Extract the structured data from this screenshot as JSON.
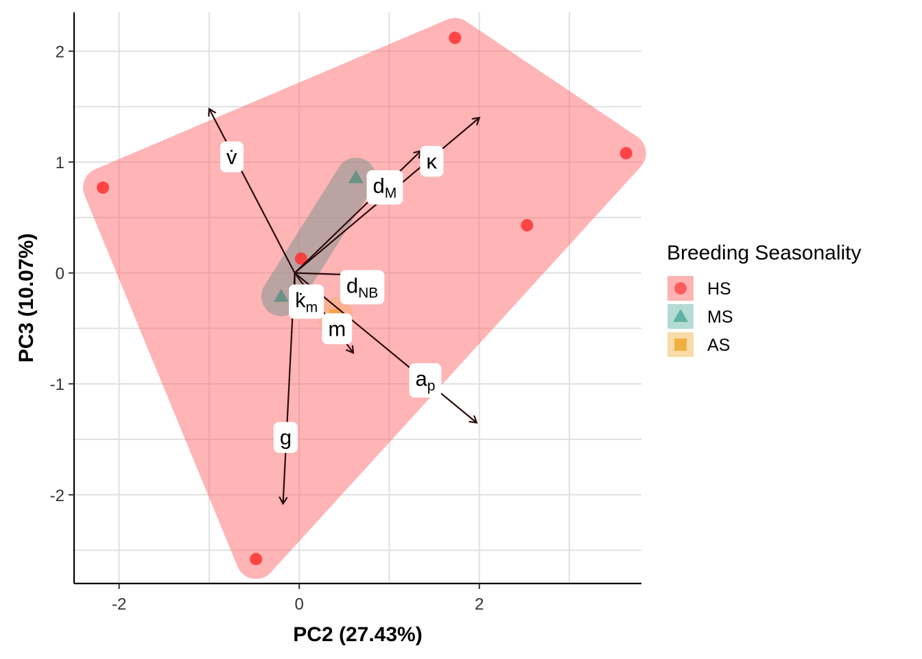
{
  "chart_data": {
    "type": "scatter",
    "xlabel": "PC2 (27.43%)",
    "ylabel": "PC3 (10.07%)",
    "xlim": [
      -2.5,
      3.8
    ],
    "ylim": [
      -2.8,
      2.35
    ],
    "x_ticks": [
      -2,
      0,
      2
    ],
    "y_ticks": [
      -2,
      -1,
      0,
      1,
      2
    ],
    "x_tick_labels": [
      "-2",
      "0",
      "2"
    ],
    "y_tick_labels": [
      "-2",
      "-1",
      "0",
      "1",
      "2"
    ],
    "grid": true,
    "legend": {
      "title": "Breeding Seasonality",
      "placement": "right",
      "entries": [
        {
          "label": "HS",
          "shape": "circle",
          "color": "#ff5c5c",
          "fill": "#ffb3b3"
        },
        {
          "label": "MS",
          "shape": "triangle",
          "color": "#5fb3a3",
          "fill": "#b4dcd4"
        },
        {
          "label": "AS",
          "shape": "square",
          "color": "#f0b040",
          "fill": "#f8dba8"
        }
      ]
    },
    "series": [
      {
        "name": "HS",
        "color": "#ff3030",
        "hull_color": "#ff6b70",
        "points": [
          {
            "x": -2.18,
            "y": 0.77
          },
          {
            "x": 1.73,
            "y": 2.12
          },
          {
            "x": 3.63,
            "y": 1.08
          },
          {
            "x": 2.53,
            "y": 0.43
          },
          {
            "x": 0.02,
            "y": 0.13
          },
          {
            "x": -0.48,
            "y": -2.58
          }
        ]
      },
      {
        "name": "MS",
        "color": "#5a8f80",
        "hull_color": "#7a9490",
        "points": [
          {
            "x": 0.63,
            "y": 0.86
          },
          {
            "x": -0.2,
            "y": -0.21
          }
        ]
      },
      {
        "name": "AS",
        "color": "#f0a040",
        "hull_color": "#f8b070",
        "points": [
          {
            "x": 0.4,
            "y": -0.38
          }
        ]
      }
    ],
    "arrows": [
      {
        "name": "v",
        "label": "v̇",
        "sub": "",
        "x": -1.0,
        "y": 1.48,
        "label_x": -0.75,
        "label_y": 1.05
      },
      {
        "name": "kappa",
        "label": "κ",
        "sub": "",
        "x": 2.0,
        "y": 1.4,
        "label_x": 1.47,
        "label_y": 1.01
      },
      {
        "name": "dM",
        "label": "d",
        "sub": "M",
        "x": 1.35,
        "y": 1.1,
        "label_x": 0.95,
        "label_y": 0.79
      },
      {
        "name": "dNB",
        "label": "d",
        "sub": "NB",
        "x": 0.7,
        "y": -0.02,
        "label_x": 0.7,
        "label_y": -0.11
      },
      {
        "name": "km",
        "label": "k̇",
        "sub": "m",
        "x": -0.05,
        "y": -0.23,
        "label_x": 0.08,
        "label_y": -0.24
      },
      {
        "name": "m",
        "label": "m",
        "sub": "",
        "x": 0.6,
        "y": -0.72,
        "label_x": 0.42,
        "label_y": -0.5
      },
      {
        "name": "ap",
        "label": "a",
        "sub": "p",
        "x": 1.97,
        "y": -1.35,
        "label_x": 1.4,
        "label_y": -0.95
      },
      {
        "name": "g",
        "label": "g",
        "sub": "",
        "x": -0.18,
        "y": -2.08,
        "label_x": -0.15,
        "label_y": -1.48
      }
    ],
    "arrow_origin": {
      "x": -0.05,
      "y": 0.0
    }
  }
}
